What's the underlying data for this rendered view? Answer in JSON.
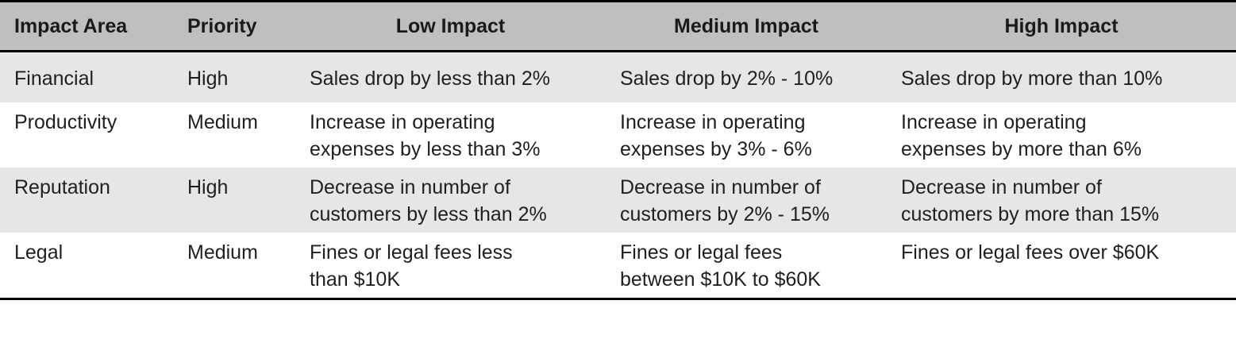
{
  "table": {
    "headers": [
      "Impact Area",
      "Priority",
      "Low Impact",
      "Medium Impact",
      "High Impact"
    ],
    "rows": [
      {
        "area": "Financial",
        "priority": "High",
        "low": [
          "Sales drop by less than 2%"
        ],
        "medium": [
          "Sales drop by 2% - 10%"
        ],
        "high": [
          "Sales drop by more than 10%"
        ]
      },
      {
        "area": "Productivity",
        "priority": "Medium",
        "low": [
          "Increase in operating",
          "expenses by less than 3%"
        ],
        "medium": [
          "Increase in operating",
          "expenses by 3% - 6%"
        ],
        "high": [
          "Increase in operating",
          "expenses by more than 6%"
        ]
      },
      {
        "area": "Reputation",
        "priority": "High",
        "low": [
          "Decrease in number of",
          "customers by less than 2%"
        ],
        "medium": [
          "Decrease in number of",
          "customers by 2% - 15%"
        ],
        "high": [
          "Decrease in number of",
          "customers by more than 15%"
        ]
      },
      {
        "area": "Legal",
        "priority": "Medium",
        "low": [
          "Fines or legal fees less",
          "than $10K"
        ],
        "medium": [
          "Fines or legal fees",
          "between $10K to $60K"
        ],
        "high": [
          "Fines or legal fees over $60K"
        ]
      }
    ]
  },
  "colors": {
    "header_bg": "#bfbfbf",
    "shade_row_bg": "#e6e6e6",
    "border": "#000000"
  }
}
